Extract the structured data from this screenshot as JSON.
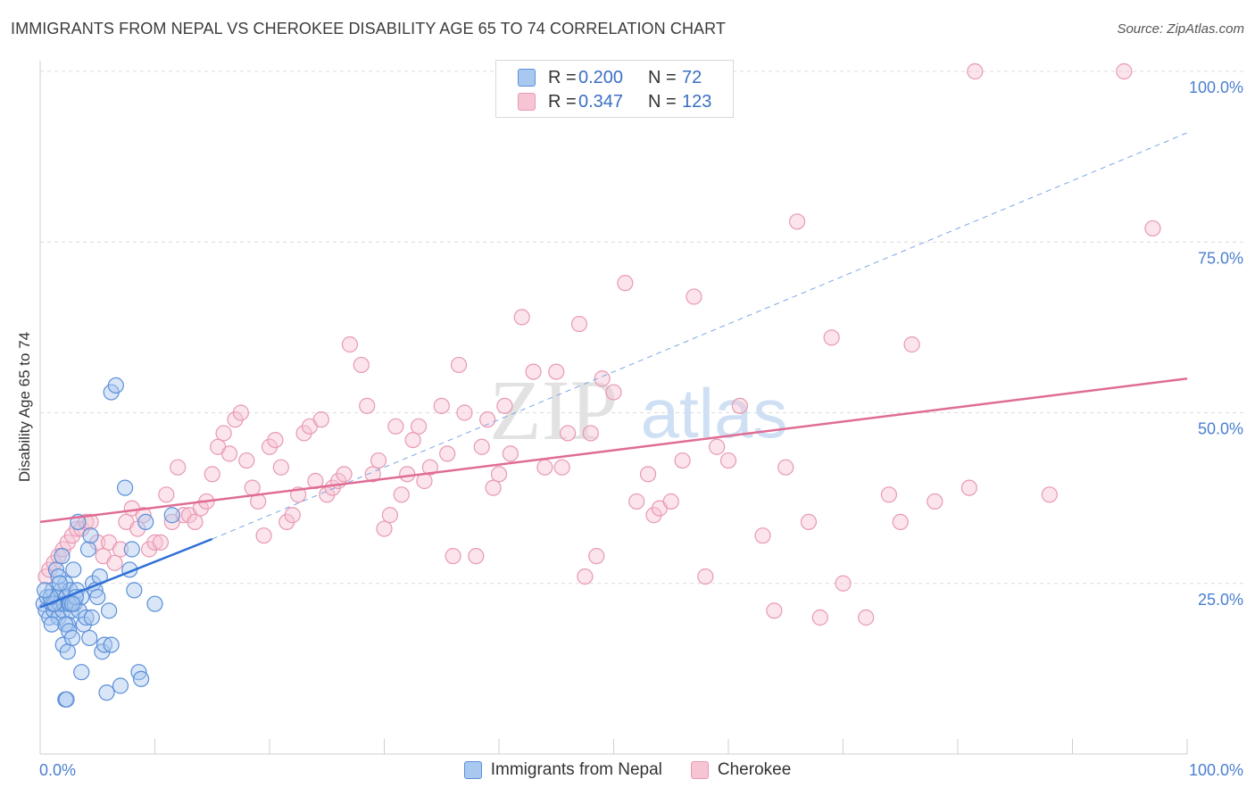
{
  "title": "IMMIGRANTS FROM NEPAL VS CHEROKEE DISABILITY AGE 65 TO 74 CORRELATION CHART",
  "source": "Source: ZipAtlas.com",
  "watermark": {
    "zip": "ZIP",
    "atlas": "atlas"
  },
  "legend": {
    "r_label": "R =",
    "n_label": "N =",
    "series": [
      {
        "name": "Immigrants from Nepal",
        "r": "0.200",
        "n": "72",
        "fill": "#a9c8f0",
        "stroke": "#5b8fd8"
      },
      {
        "name": "Cherokee",
        "r": "0.347",
        "n": "123",
        "fill": "#f7c4d3",
        "stroke": "#e899b3"
      }
    ]
  },
  "chart_data": {
    "type": "scatter",
    "title": "IMMIGRANTS FROM NEPAL VS CHEROKEE DISABILITY AGE 65 TO 74 CORRELATION CHART",
    "xlabel": "",
    "ylabel": "Disability Age 65 to 74",
    "xlim": [
      0,
      100
    ],
    "ylim": [
      0,
      102
    ],
    "x_tick_labels": [
      "0.0%",
      "100.0%"
    ],
    "y_ticks": [
      25,
      50,
      75,
      100
    ],
    "y_tick_labels": [
      "25.0%",
      "50.0%",
      "75.0%",
      "100.0%"
    ],
    "grid": true,
    "legend_position": "top-center",
    "colors": {
      "nepal_point": "#5b8fd8",
      "nepal_line": "#2f6fd6",
      "cherokee_point": "#e899b3",
      "cherokee_line": "#e06c94"
    },
    "series": [
      {
        "name": "Immigrants from Nepal",
        "trend": {
          "x1": 0,
          "y1": 21.5,
          "x2": 15,
          "y2": 31.5,
          "extend_x2": 100,
          "extend_y2": 91
        },
        "points": [
          [
            0.3,
            22
          ],
          [
            0.5,
            21
          ],
          [
            0.6,
            23
          ],
          [
            0.8,
            20
          ],
          [
            1.0,
            22
          ],
          [
            1.1,
            24
          ],
          [
            1.2,
            21
          ],
          [
            1.3,
            22
          ],
          [
            1.5,
            23
          ],
          [
            1.6,
            20
          ],
          [
            1.7,
            22
          ],
          [
            1.8,
            24
          ],
          [
            2.0,
            21
          ],
          [
            2.1,
            22
          ],
          [
            2.2,
            25
          ],
          [
            2.3,
            23
          ],
          [
            2.4,
            19
          ],
          [
            2.5,
            22
          ],
          [
            2.6,
            24
          ],
          [
            2.7,
            21
          ],
          [
            1.0,
            19
          ],
          [
            1.4,
            27
          ],
          [
            1.6,
            26
          ],
          [
            1.9,
            29
          ],
          [
            2.0,
            16
          ],
          [
            2.2,
            19
          ],
          [
            2.4,
            15
          ],
          [
            2.5,
            18
          ],
          [
            2.6,
            22
          ],
          [
            2.8,
            17
          ],
          [
            3.0,
            22
          ],
          [
            3.2,
            24
          ],
          [
            3.4,
            21
          ],
          [
            3.6,
            23
          ],
          [
            3.8,
            19
          ],
          [
            4.0,
            20
          ],
          [
            4.2,
            30
          ],
          [
            4.4,
            32
          ],
          [
            4.6,
            25
          ],
          [
            4.8,
            24
          ],
          [
            5.0,
            23
          ],
          [
            5.2,
            26
          ],
          [
            5.4,
            15
          ],
          [
            5.6,
            16
          ],
          [
            6.0,
            21
          ],
          [
            6.2,
            53
          ],
          [
            6.6,
            54
          ],
          [
            7.0,
            10
          ],
          [
            7.4,
            39
          ],
          [
            7.8,
            27
          ],
          [
            8.0,
            30
          ],
          [
            8.2,
            24
          ],
          [
            8.6,
            12
          ],
          [
            8.8,
            11
          ],
          [
            9.2,
            34
          ],
          [
            10.0,
            22
          ],
          [
            11.5,
            35
          ],
          [
            2.2,
            8
          ],
          [
            2.3,
            8
          ],
          [
            3.6,
            12
          ],
          [
            4.5,
            20
          ],
          [
            3.3,
            34
          ],
          [
            1.2,
            22
          ],
          [
            0.9,
            23
          ],
          [
            1.7,
            25
          ],
          [
            2.9,
            27
          ],
          [
            3.1,
            23
          ],
          [
            4.3,
            17
          ],
          [
            5.8,
            9
          ],
          [
            6.2,
            16
          ],
          [
            0.4,
            24
          ],
          [
            2.8,
            22
          ]
        ]
      },
      {
        "name": "Cherokee",
        "trend": {
          "x1": 0,
          "y1": 34,
          "x2": 100,
          "y2": 55
        },
        "points": [
          [
            0.5,
            26
          ],
          [
            0.8,
            27
          ],
          [
            1.2,
            28
          ],
          [
            1.6,
            29
          ],
          [
            2.0,
            30
          ],
          [
            2.4,
            31
          ],
          [
            2.8,
            32
          ],
          [
            3.2,
            33
          ],
          [
            3.6,
            33
          ],
          [
            4.0,
            34
          ],
          [
            4.4,
            34
          ],
          [
            5.0,
            31
          ],
          [
            5.5,
            29
          ],
          [
            6.0,
            31
          ],
          [
            6.5,
            28
          ],
          [
            7.0,
            30
          ],
          [
            7.5,
            34
          ],
          [
            8.0,
            36
          ],
          [
            8.5,
            33
          ],
          [
            9.0,
            35
          ],
          [
            9.5,
            30
          ],
          [
            10.0,
            31
          ],
          [
            10.5,
            31
          ],
          [
            11.0,
            38
          ],
          [
            11.5,
            34
          ],
          [
            12.0,
            42
          ],
          [
            12.5,
            35
          ],
          [
            13.0,
            35
          ],
          [
            13.5,
            34
          ],
          [
            14.0,
            36
          ],
          [
            14.5,
            37
          ],
          [
            15.0,
            41
          ],
          [
            15.5,
            45
          ],
          [
            16.0,
            47
          ],
          [
            16.5,
            44
          ],
          [
            17.0,
            49
          ],
          [
            17.5,
            50
          ],
          [
            18.0,
            43
          ],
          [
            18.5,
            39
          ],
          [
            19.0,
            37
          ],
          [
            19.5,
            32
          ],
          [
            20.0,
            45
          ],
          [
            20.5,
            46
          ],
          [
            21.0,
            42
          ],
          [
            21.5,
            34
          ],
          [
            22.0,
            35
          ],
          [
            22.5,
            38
          ],
          [
            23.0,
            47
          ],
          [
            23.5,
            48
          ],
          [
            24.0,
            40
          ],
          [
            24.5,
            49
          ],
          [
            25.0,
            38
          ],
          [
            25.5,
            39
          ],
          [
            26.0,
            40
          ],
          [
            26.5,
            41
          ],
          [
            27.0,
            60
          ],
          [
            28.0,
            57
          ],
          [
            28.5,
            51
          ],
          [
            29.0,
            41
          ],
          [
            29.5,
            43
          ],
          [
            30.0,
            33
          ],
          [
            30.5,
            35
          ],
          [
            31.0,
            48
          ],
          [
            31.5,
            38
          ],
          [
            32.0,
            41
          ],
          [
            32.5,
            46
          ],
          [
            33.0,
            48
          ],
          [
            33.5,
            40
          ],
          [
            34.0,
            42
          ],
          [
            35.0,
            51
          ],
          [
            35.5,
            44
          ],
          [
            36.0,
            29
          ],
          [
            36.5,
            57
          ],
          [
            37.0,
            50
          ],
          [
            38.0,
            29
          ],
          [
            38.5,
            45
          ],
          [
            39.0,
            49
          ],
          [
            39.5,
            39
          ],
          [
            40.0,
            41
          ],
          [
            40.5,
            51
          ],
          [
            41.0,
            44
          ],
          [
            42.0,
            64
          ],
          [
            43.0,
            56
          ],
          [
            44.0,
            42
          ],
          [
            45.0,
            56
          ],
          [
            45.5,
            42
          ],
          [
            46.0,
            47
          ],
          [
            47.0,
            63
          ],
          [
            47.5,
            26
          ],
          [
            48.0,
            47
          ],
          [
            48.5,
            29
          ],
          [
            49.0,
            55
          ],
          [
            50.0,
            53
          ],
          [
            51.0,
            69
          ],
          [
            52.0,
            37
          ],
          [
            53.0,
            41
          ],
          [
            53.5,
            35
          ],
          [
            54.0,
            36
          ],
          [
            55.0,
            37
          ],
          [
            56.0,
            43
          ],
          [
            57.0,
            67
          ],
          [
            58.0,
            26
          ],
          [
            59.0,
            45
          ],
          [
            60.0,
            43
          ],
          [
            61.0,
            51
          ],
          [
            63.0,
            32
          ],
          [
            64.0,
            21
          ],
          [
            65.0,
            42
          ],
          [
            66.0,
            78
          ],
          [
            67.0,
            34
          ],
          [
            68.0,
            20
          ],
          [
            69.0,
            61
          ],
          [
            70.0,
            25
          ],
          [
            72.0,
            20
          ],
          [
            74.0,
            38
          ],
          [
            75.0,
            34
          ],
          [
            76.0,
            60
          ],
          [
            78.0,
            37
          ],
          [
            81.0,
            39
          ],
          [
            81.5,
            100
          ],
          [
            88.0,
            38
          ],
          [
            94.5,
            100
          ],
          [
            97.0,
            77
          ]
        ]
      }
    ]
  }
}
